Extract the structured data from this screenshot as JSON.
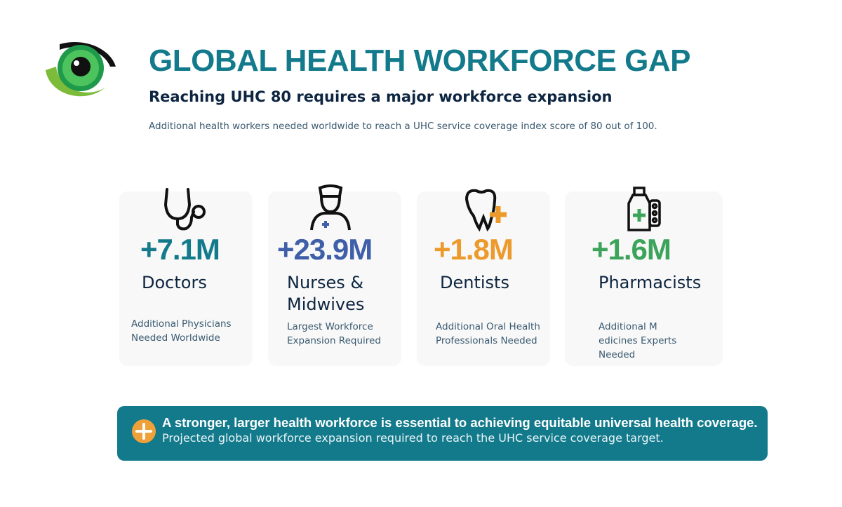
{
  "header": {
    "title": "GLOBAL HEALTH WORKFORCE GAP",
    "subtitle": "Reaching UHC 80 requires a major workforce expansion",
    "description": "Additional health workers needed worldwide to reach a UHC service coverage index score of 80 out of 100."
  },
  "cards": [
    {
      "value": "+7.1M",
      "label": "Doctors",
      "note": "Additional Physicians Needed Worldwide",
      "color": "#137a8c"
    },
    {
      "value": "+23.9M",
      "label": "Nurses & Midwives",
      "note": "Largest Workforce Expansion Required",
      "color": "#3f5fa8"
    },
    {
      "value": "+1.8M",
      "label": "Dentists",
      "note": "Additional Oral Health Professionals Needed",
      "color": "#ec9a2c"
    },
    {
      "value": "+1.6M",
      "label": "Pharmacists",
      "note": "Additional M edicines Experts Needed",
      "color": "#3ba45a"
    }
  ],
  "banner": {
    "headline": "A stronger, larger health workforce is essential to achieving equitable universal health coverage.",
    "text": "Projected global workforce expansion required to reach the UHC service coverage target."
  }
}
